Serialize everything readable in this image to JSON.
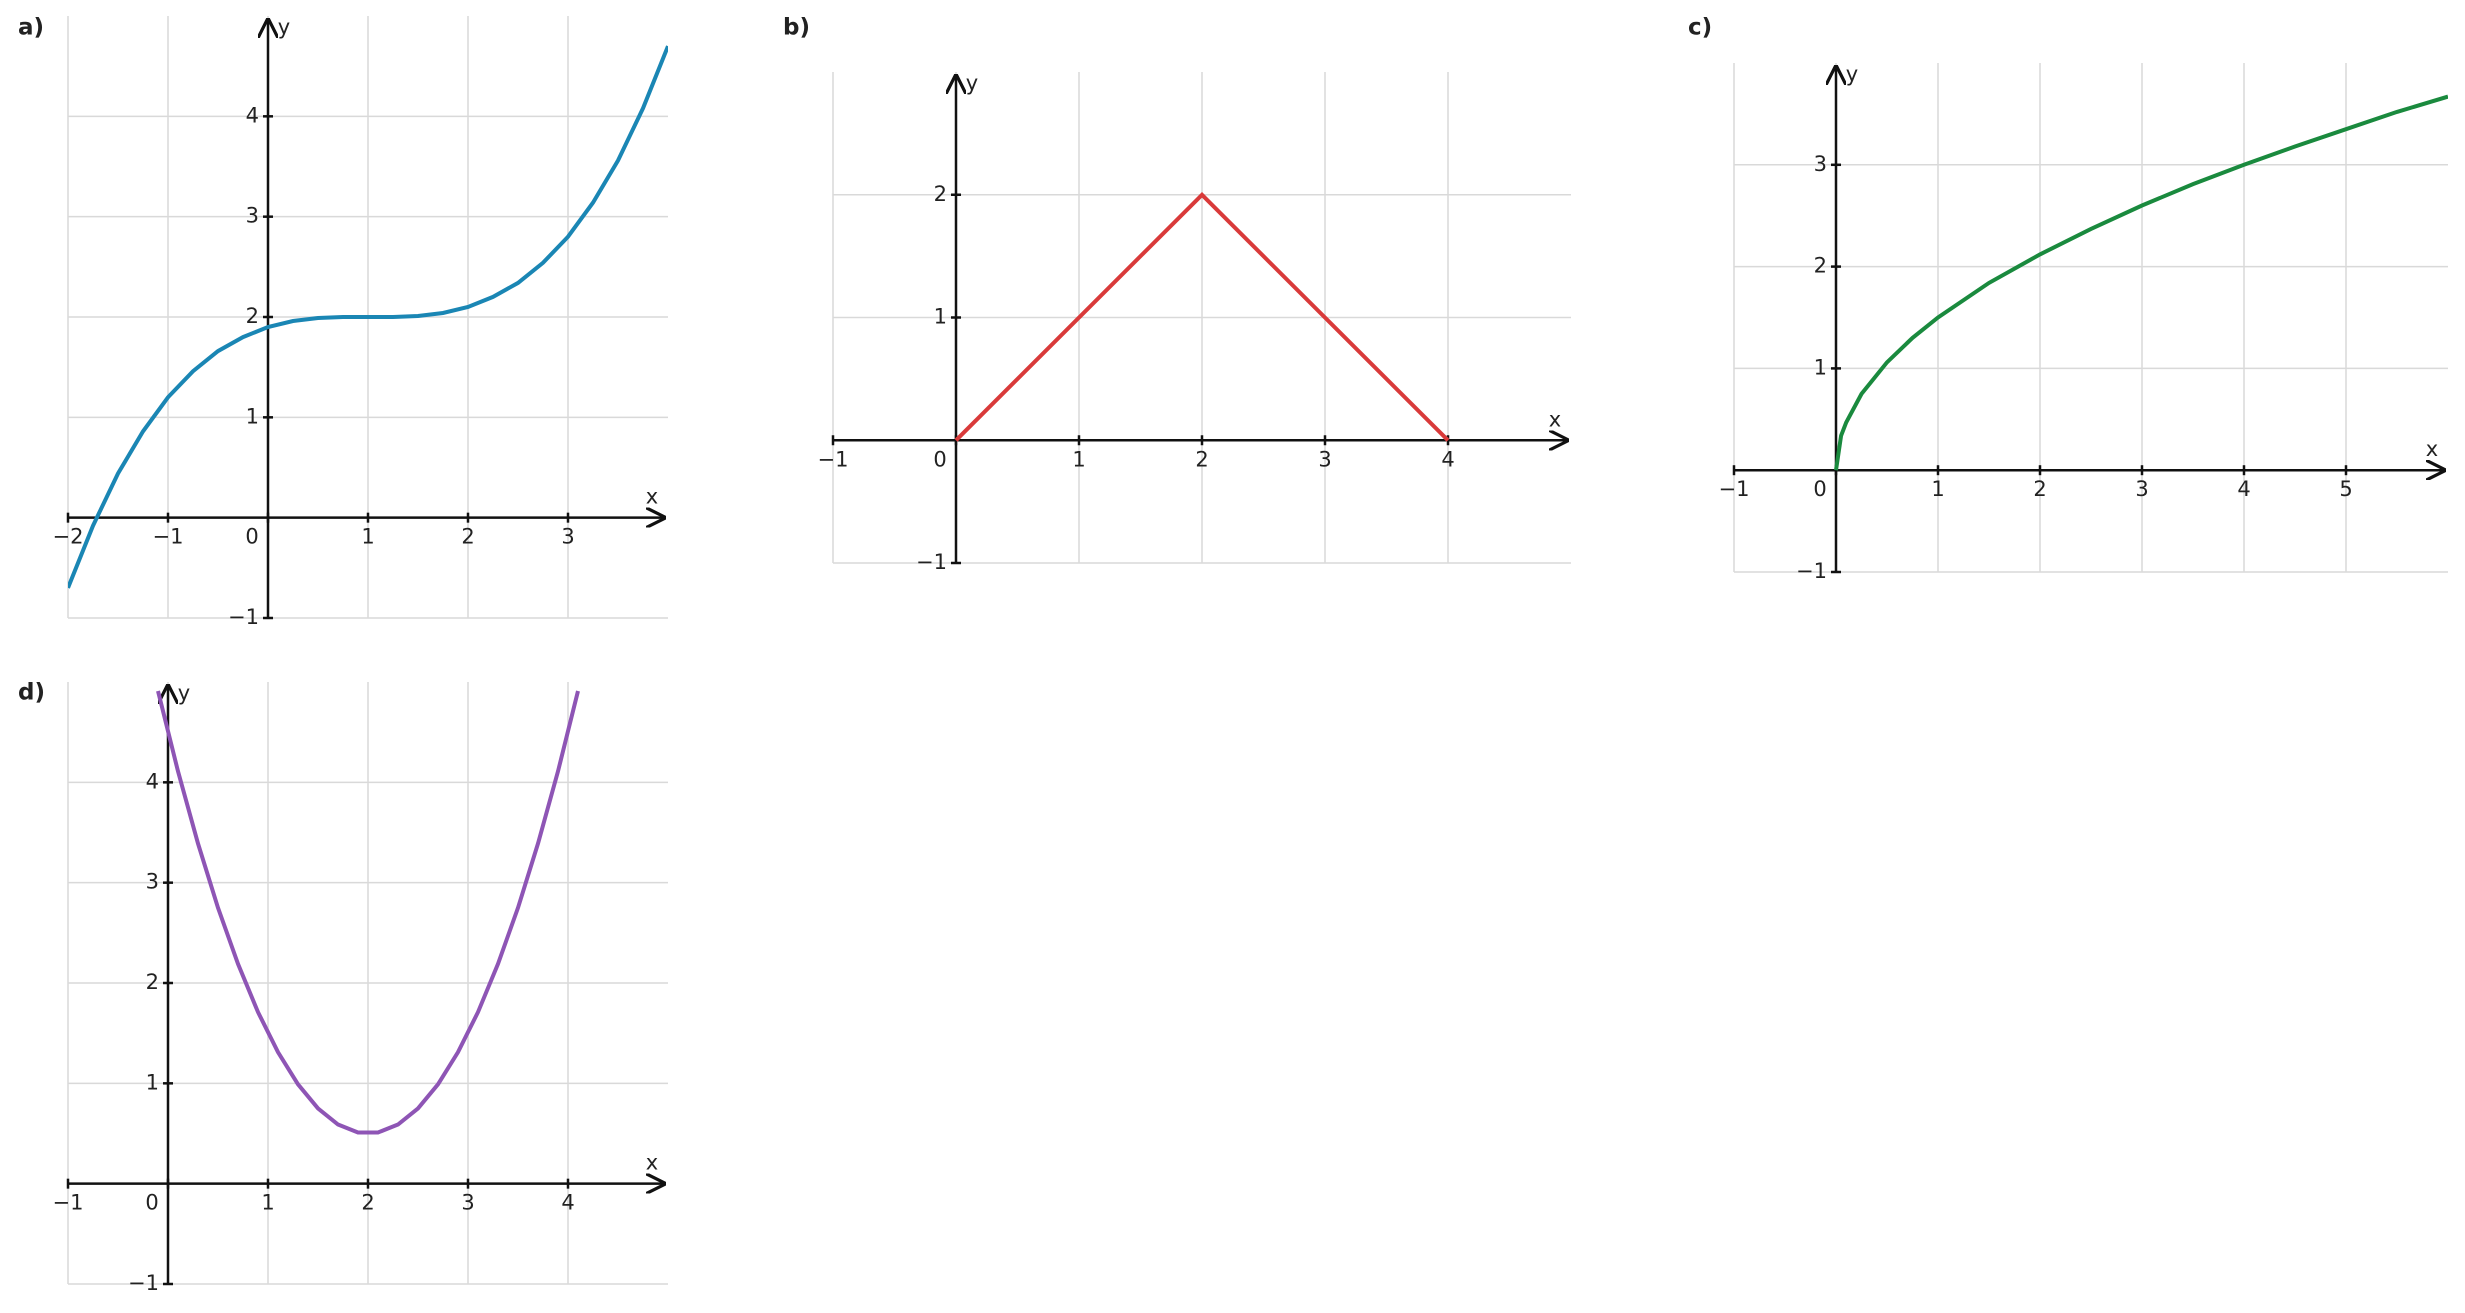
{
  "chart_data": [
    {
      "type": "line",
      "title": "a)",
      "x_label": "x",
      "y_label": "y",
      "color": "#1a86b4",
      "grid": true,
      "x": [
        -2,
        -1.75,
        -1.5,
        -1.25,
        -1,
        -0.75,
        -0.5,
        -0.25,
        0,
        0.25,
        0.5,
        0.75,
        1,
        1.25,
        1.5,
        1.75,
        2,
        2.25,
        2.5,
        2.75,
        3,
        3.25,
        3.5,
        3.75,
        4
      ],
      "values": [
        -0.7,
        -0.08,
        0.44,
        0.86,
        1.2,
        1.46,
        1.66,
        1.8,
        1.9,
        1.96,
        1.99,
        2.0,
        2,
        2.0,
        2.01,
        2.04,
        2.1,
        2.2,
        2.34,
        2.54,
        2.8,
        3.14,
        3.56,
        4.08,
        4.7
      ],
      "xlim": [
        -2,
        4
      ],
      "ylim": [
        -1,
        5
      ],
      "xticks": [
        {
          "value": -2,
          "label": "−2"
        },
        {
          "value": -1,
          "label": "−1"
        },
        0,
        1,
        2,
        3
      ],
      "yticks": [
        {
          "value": -1,
          "label": "−1"
        },
        1,
        2,
        3,
        4
      ]
    },
    {
      "type": "line",
      "title": "b)",
      "x_label": "x",
      "y_label": "y",
      "color": "#d93a3a",
      "grid": true,
      "x": [
        0,
        2,
        4
      ],
      "values": [
        0,
        2,
        0
      ],
      "xlim": [
        -1,
        5
      ],
      "ylim": [
        -1,
        3
      ],
      "xticks": [
        {
          "value": -1,
          "label": "−1"
        },
        0,
        1,
        2,
        3,
        4
      ],
      "yticks": [
        {
          "value": -1,
          "label": "−1"
        },
        1,
        2
      ]
    },
    {
      "type": "line",
      "title": "c)",
      "x_label": "x",
      "y_label": "y",
      "color": "#1a8a3e",
      "grid": true,
      "x": [
        0,
        0.05,
        0.1,
        0.25,
        0.5,
        0.75,
        1,
        1.5,
        2,
        2.5,
        3,
        3.5,
        4,
        4.5,
        5,
        5.5,
        6
      ],
      "values": [
        0,
        0.34,
        0.47,
        0.75,
        1.06,
        1.3,
        1.5,
        1.84,
        2.12,
        2.37,
        2.6,
        2.81,
        3,
        3.18,
        3.35,
        3.52,
        3.67
      ],
      "xlim": [
        -1,
        6
      ],
      "ylim": [
        -1,
        4
      ],
      "xticks": [
        {
          "value": -1,
          "label": "−1"
        },
        0,
        1,
        2,
        3,
        4,
        5
      ],
      "yticks": [
        {
          "value": -1,
          "label": "−1"
        },
        1,
        2,
        3
      ]
    },
    {
      "type": "line",
      "title": "d)",
      "x_label": "x",
      "y_label": "y",
      "color": "#8e55b5",
      "grid": true,
      "x": [
        -0.1,
        0.1,
        0.3,
        0.5,
        0.7,
        0.9,
        1.1,
        1.3,
        1.5,
        1.7,
        1.9,
        2.1,
        2.3,
        2.5,
        2.7,
        2.9,
        3.1,
        3.3,
        3.5,
        3.7,
        3.9,
        4.1
      ],
      "values": [
        4.91,
        4.11,
        3.39,
        2.75,
        2.19,
        1.71,
        1.31,
        0.99,
        0.75,
        0.59,
        0.51,
        0.51,
        0.59,
        0.75,
        0.99,
        1.31,
        1.71,
        2.19,
        2.75,
        3.39,
        4.11,
        4.91
      ],
      "xlim": [
        -1,
        5
      ],
      "ylim": [
        -1,
        5
      ],
      "xticks": [
        {
          "value": -1,
          "label": "−1"
        },
        0,
        1,
        2,
        3,
        4
      ],
      "yticks": [
        {
          "value": -1,
          "label": "−1"
        },
        1,
        2,
        3,
        4
      ]
    }
  ]
}
